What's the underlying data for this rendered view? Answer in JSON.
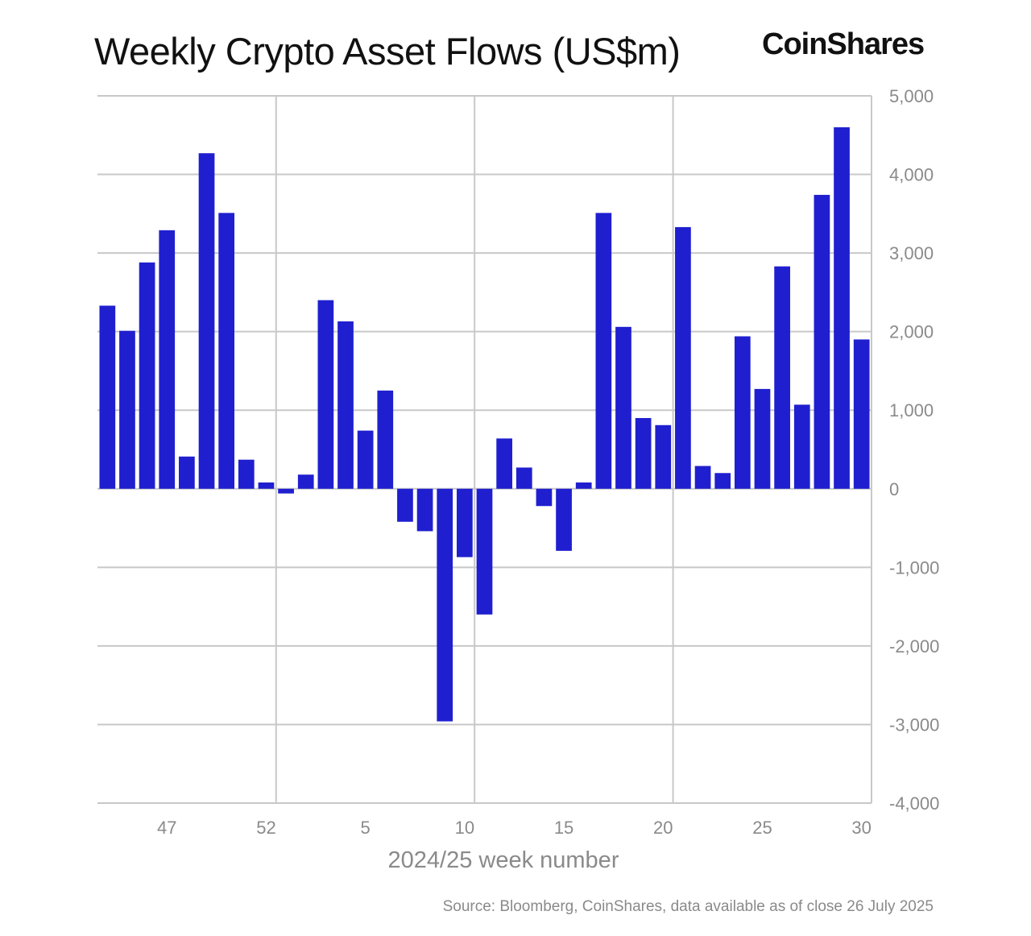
{
  "title": "Weekly Crypto Asset Flows (US$m)",
  "logo_text": "CoinShares",
  "source": "Source: Bloomberg, CoinShares, data available as of close 26 July 2025",
  "chart_data": {
    "type": "bar",
    "xlabel": "2024/25 week number",
    "ylabel": "",
    "ylim": [
      -4000,
      5000
    ],
    "yticks": [
      5000,
      4000,
      3000,
      2000,
      1000,
      0,
      -1000,
      -2000,
      -3000,
      -4000
    ],
    "ytick_labels": [
      "5,000",
      "4,000",
      "3,000",
      "2,000",
      "1,000",
      "0",
      "-1,000",
      "-2,000",
      "-3,000",
      "-4,000"
    ],
    "xtick_labels": [
      "47",
      "52",
      "5",
      "10",
      "15",
      "20",
      "25",
      "30"
    ],
    "grid": true,
    "y_axis_position": "right",
    "bar_color": "#1f1fcf",
    "categories": [
      "44",
      "45",
      "46",
      "47",
      "48",
      "49",
      "50",
      "51",
      "52",
      "1",
      "2",
      "3",
      "4",
      "5",
      "6",
      "7",
      "8",
      "9",
      "10",
      "11",
      "12",
      "13",
      "14",
      "15",
      "16",
      "17",
      "18",
      "19",
      "20",
      "21",
      "22",
      "23",
      "24",
      "25",
      "26",
      "27",
      "28",
      "29",
      "30"
    ],
    "values": [
      2330,
      2010,
      2880,
      3290,
      410,
      4270,
      3510,
      370,
      80,
      -60,
      180,
      2400,
      2130,
      740,
      1250,
      -420,
      -540,
      -2960,
      -870,
      -1600,
      640,
      270,
      -220,
      -790,
      80,
      3510,
      2060,
      900,
      810,
      3330,
      290,
      200,
      1940,
      1270,
      2830,
      1070,
      3740,
      4600,
      1900
    ]
  }
}
